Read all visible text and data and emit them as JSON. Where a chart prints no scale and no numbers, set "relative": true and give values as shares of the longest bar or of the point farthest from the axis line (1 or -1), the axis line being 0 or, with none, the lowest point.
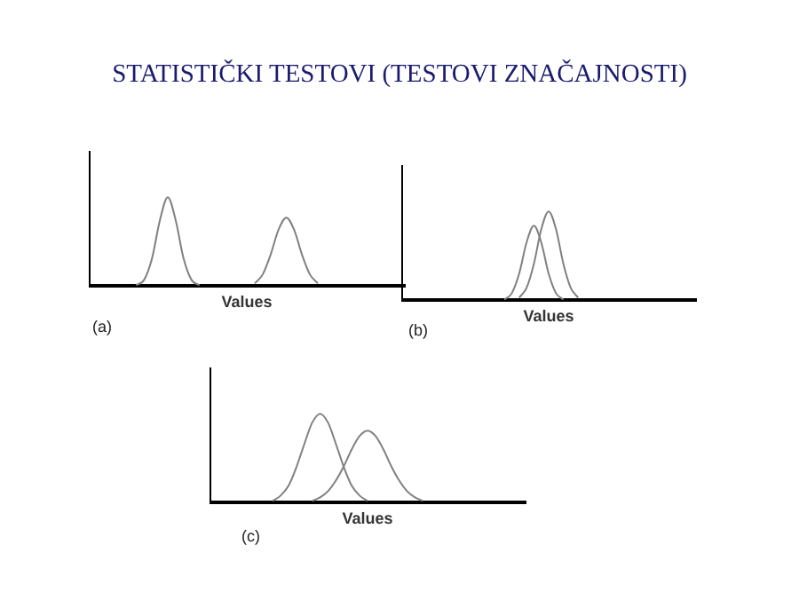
{
  "chart_data": [
    {
      "type": "line",
      "title": "STATISTIČKI TESTOVI (TESTOVI ZNAČAJNOSTI)",
      "xlabel": "Values",
      "relative": true,
      "annotations": [
        "(a)"
      ],
      "categories": [
        null,
        null,
        null,
        null,
        null,
        null,
        null,
        null,
        null,
        null,
        null,
        null,
        null,
        null,
        null,
        null,
        null,
        null,
        null,
        null,
        null,
        null,
        null,
        null,
        null,
        null,
        null,
        null,
        null,
        null,
        null,
        null,
        null,
        null,
        null,
        null,
        null,
        null,
        null,
        null,
        null
      ],
      "series": [
        {
          "color": "#808080",
          "values": [
            null,
            null,
            null,
            null,
            null,
            null,
            0.01,
            0.07,
            0.31,
            0.74,
            1,
            0.74,
            0.31,
            0.07,
            0.01,
            null,
            null,
            null,
            null,
            null,
            null,
            null,
            null,
            null,
            null,
            null,
            null,
            null,
            null,
            null,
            null,
            null,
            null,
            null,
            null,
            null,
            null,
            null,
            null,
            null,
            null
          ]
        },
        {
          "color": "#808080",
          "values": [
            null,
            null,
            null,
            null,
            null,
            null,
            null,
            null,
            null,
            null,
            null,
            null,
            null,
            null,
            null,
            null,
            null,
            null,
            null,
            null,
            null,
            0.03,
            0.13,
            0.35,
            0.63,
            0.77,
            0.63,
            0.35,
            0.13,
            0.03,
            null,
            null,
            null,
            null,
            null,
            null,
            null,
            null,
            null,
            null,
            null
          ]
        }
      ]
    },
    {
      "type": "line",
      "xlabel": "Values",
      "relative": true,
      "annotations": [
        "(b)"
      ],
      "categories": [
        null,
        null,
        null,
        null,
        null,
        null,
        null,
        null,
        null,
        null,
        null,
        null,
        null,
        null,
        null,
        null,
        null,
        null,
        null,
        null,
        null,
        null,
        null,
        null,
        null,
        null,
        null,
        null,
        null,
        null,
        null,
        null,
        null,
        null,
        null,
        null,
        null,
        null,
        null,
        null,
        null
      ],
      "series": [
        {
          "color": "#808080",
          "values": [
            null,
            null,
            null,
            null,
            null,
            null,
            null,
            null,
            null,
            null,
            null,
            null,
            null,
            null,
            0.01,
            0.08,
            0.3,
            0.65,
            0.84,
            0.65,
            0.3,
            0.08,
            0.01,
            null,
            null,
            null,
            null,
            null,
            null,
            null,
            null,
            null,
            null,
            null,
            null,
            null,
            null,
            null,
            null,
            null,
            null
          ]
        },
        {
          "color": "#808080",
          "values": [
            null,
            null,
            null,
            null,
            null,
            null,
            null,
            null,
            null,
            null,
            null,
            null,
            null,
            null,
            null,
            null,
            0.03,
            0.14,
            0.41,
            0.8,
            1,
            0.8,
            0.41,
            0.14,
            0.03,
            null,
            null,
            null,
            null,
            null,
            null,
            null,
            null,
            null,
            null,
            null,
            null,
            null,
            null,
            null,
            null
          ]
        }
      ]
    },
    {
      "type": "line",
      "xlabel": "Values",
      "relative": true,
      "annotations": [
        "(c)"
      ],
      "categories": [
        null,
        null,
        null,
        null,
        null,
        null,
        null,
        null,
        null,
        null,
        null,
        null,
        null,
        null,
        null,
        null,
        null,
        null,
        null,
        null,
        null,
        null,
        null,
        null,
        null,
        null,
        null,
        null,
        null,
        null,
        null,
        null,
        null,
        null,
        null,
        null,
        null,
        null,
        null,
        null,
        null
      ],
      "series": [
        {
          "color": "#808080",
          "values": [
            null,
            null,
            null,
            null,
            null,
            null,
            null,
            null,
            0.02,
            0.08,
            0.19,
            0.4,
            0.66,
            0.9,
            1,
            0.9,
            0.66,
            0.4,
            0.19,
            0.08,
            0.02,
            null,
            null,
            null,
            null,
            null,
            null,
            null,
            null,
            null,
            null,
            null,
            null,
            null,
            null,
            null,
            null,
            null,
            null,
            null,
            null
          ]
        },
        {
          "color": "#808080",
          "values": [
            null,
            null,
            null,
            null,
            null,
            null,
            null,
            null,
            null,
            null,
            null,
            null,
            null,
            0.02,
            0.06,
            0.13,
            0.25,
            0.41,
            0.6,
            0.75,
            0.81,
            0.75,
            0.6,
            0.41,
            0.25,
            0.13,
            0.06,
            0.02,
            null,
            null,
            null,
            null,
            null,
            null,
            null,
            null,
            null,
            null,
            null,
            null,
            null
          ]
        }
      ]
    }
  ]
}
